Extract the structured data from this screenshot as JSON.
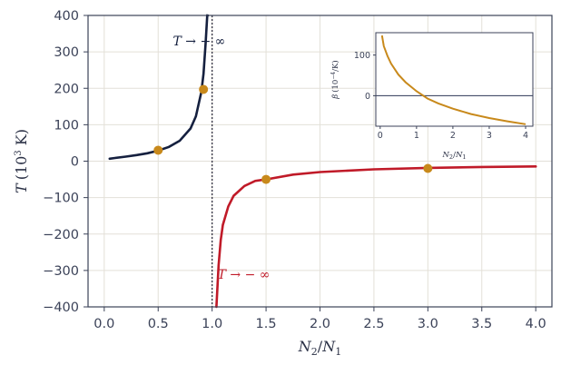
{
  "chart_data": [
    {
      "type": "line",
      "xlabel_parts": {
        "n2": "N",
        "n2_sub": "2",
        "slash": "/",
        "n1": "N",
        "n1_sub": "1"
      },
      "ylabel_parts": {
        "var": "T",
        "open": "(10",
        "exp": "3",
        "unit": " K)"
      },
      "xlim": [
        -0.15,
        4.15
      ],
      "ylim": [
        -400,
        400
      ],
      "xticks": [
        0.0,
        0.5,
        1.0,
        1.5,
        2.0,
        2.5,
        3.0,
        3.5,
        4.0
      ],
      "xtick_labels": [
        "0.0",
        "0.5",
        "1.0",
        "1.5",
        "2.0",
        "2.5",
        "3.0",
        "3.5",
        "4.0"
      ],
      "yticks": [
        -400,
        -300,
        -200,
        -100,
        0,
        100,
        200,
        300,
        400
      ],
      "ytick_labels": [
        "−400",
        "−300",
        "−200",
        "−100",
        "0",
        "100",
        "200",
        "300",
        "400"
      ],
      "grid": true,
      "vertical_line": {
        "x": 1.0,
        "style": "dotted",
        "color": "#333344"
      },
      "series": [
        {
          "branch": "positive",
          "color": "#15203f",
          "x": [
            0.05,
            0.1,
            0.2,
            0.3,
            0.4,
            0.5,
            0.6,
            0.7,
            0.8,
            0.85,
            0.9,
            0.92,
            0.94,
            0.955,
            0.96
          ],
          "y": [
            6.7,
            8.7,
            12.4,
            16.6,
            21.8,
            28.9,
            39.1,
            56.0,
            89.6,
            123.0,
            189.8,
            240.0,
            323.0,
            400.0,
            400.0
          ]
        },
        {
          "branch": "negative",
          "color": "#c01a28",
          "x": [
            1.04,
            1.06,
            1.08,
            1.1,
            1.15,
            1.2,
            1.3,
            1.4,
            1.5,
            1.75,
            2.0,
            2.5,
            3.0,
            3.5,
            4.0
          ],
          "y": [
            -400.0,
            -286.0,
            -216.0,
            -175.0,
            -124.0,
            -95.0,
            -68.0,
            -54.0,
            -50.0,
            -37.0,
            -30.0,
            -22.5,
            -18.5,
            -16.0,
            -14.5
          ]
        }
      ],
      "markers": {
        "color": "#c8891b",
        "points": [
          {
            "x": 0.5,
            "y": 30
          },
          {
            "x": 0.92,
            "y": 197
          },
          {
            "x": 1.5,
            "y": -50
          },
          {
            "x": 3.0,
            "y": -20
          }
        ]
      },
      "annotations": [
        {
          "text": "T → + ∞",
          "x": 0.88,
          "y": 330,
          "color": "#15203f"
        },
        {
          "text": "T → − ∞",
          "x": 1.05,
          "y": -310,
          "color": "#c01a28"
        }
      ]
    },
    {
      "type": "line",
      "inset": true,
      "xlabel_parts": {
        "n2": "N",
        "n2_sub": "2",
        "slash": "/",
        "n1": "N",
        "n1_sub": "1"
      },
      "ylabel_parts": {
        "var": "β",
        "open": "(10",
        "exp": "−4",
        "unit": "/K)"
      },
      "xlim": [
        -0.12,
        4.2
      ],
      "ylim": [
        -75,
        155
      ],
      "xticks": [
        0,
        1,
        2,
        3,
        4
      ],
      "xtick_labels": [
        "0",
        "1",
        "2",
        "3",
        "4"
      ],
      "yticks": [
        0,
        100
      ],
      "ytick_labels": [
        "0",
        "100"
      ],
      "hline_y": 0,
      "series": [
        {
          "color": "#c8891b",
          "x": [
            0.05,
            0.1,
            0.2,
            0.3,
            0.5,
            0.7,
            1.0,
            1.3,
            1.6,
            2.0,
            2.5,
            3.0,
            3.5,
            4.0
          ],
          "y": [
            148,
            122,
            98,
            79,
            52,
            33,
            11,
            -7,
            -19,
            -32,
            -45,
            -55,
            -63,
            -70
          ]
        }
      ]
    }
  ]
}
